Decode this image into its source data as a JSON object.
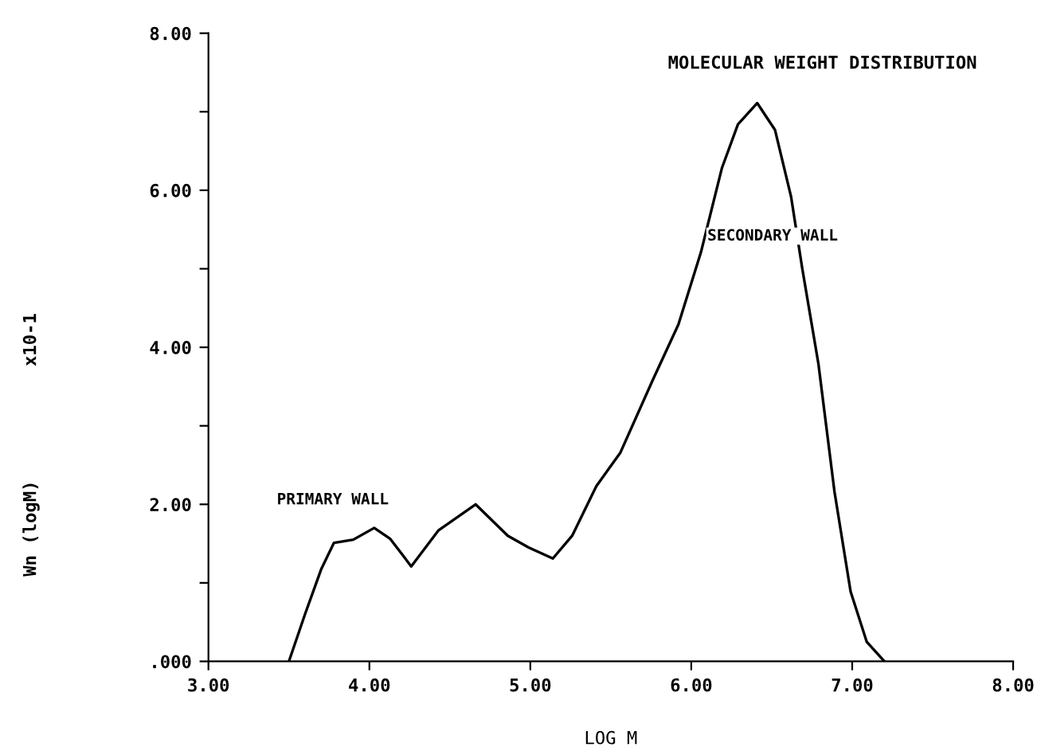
{
  "chart_data": {
    "type": "line",
    "title": "MOLECULAR WEIGHT DISTRIBUTION",
    "xlabel": "LOG M",
    "annotations": [
      "x10-1",
      "Wn (logM)",
      "PRIMARY WALL",
      "SECONDARY WALL"
    ],
    "x": [
      3.5,
      3.6,
      3.7,
      3.78,
      3.9,
      4.03,
      4.13,
      4.26,
      4.43,
      4.66,
      4.86,
      4.99,
      5.14,
      5.26,
      5.41,
      5.56,
      5.76,
      5.92,
      6.06,
      6.19,
      6.29,
      6.41,
      6.52,
      6.62,
      6.69,
      6.79,
      6.89,
      6.99,
      7.09,
      7.2
    ],
    "series": [
      {
        "color": "#000000",
        "values": [
          0.0,
          0.6,
          1.17,
          1.51,
          1.55,
          1.7,
          1.56,
          1.21,
          1.67,
          2.0,
          1.6,
          1.45,
          1.31,
          1.6,
          2.23,
          2.66,
          3.58,
          4.29,
          5.21,
          6.28,
          6.84,
          7.11,
          6.77,
          5.92,
          5.0,
          3.79,
          2.16,
          0.89,
          0.25,
          0.0
        ]
      }
    ],
    "xlim": [
      3,
      8
    ],
    "ylim": [
      0,
      8
    ],
    "xticks": [
      {
        "value": 3,
        "label": "3.00"
      },
      {
        "value": 4,
        "label": "4.00"
      },
      {
        "value": 5,
        "label": "5.00"
      },
      {
        "value": 6,
        "label": "6.00"
      },
      {
        "value": 7,
        "label": "7.00"
      },
      {
        "value": 8,
        "label": "8.00"
      }
    ],
    "yticks": [
      {
        "value": 0,
        "label": ".000"
      },
      {
        "value": 1,
        "label": null
      },
      {
        "value": 2,
        "label": "2.00"
      },
      {
        "value": 3,
        "label": null
      },
      {
        "value": 4,
        "label": "4.00"
      },
      {
        "value": 5,
        "label": null
      },
      {
        "value": 6,
        "label": "6.00"
      },
      {
        "value": 7,
        "label": null
      },
      {
        "value": 8,
        "label": "8.00"
      }
    ],
    "marker": "none",
    "line_style": "solid"
  }
}
